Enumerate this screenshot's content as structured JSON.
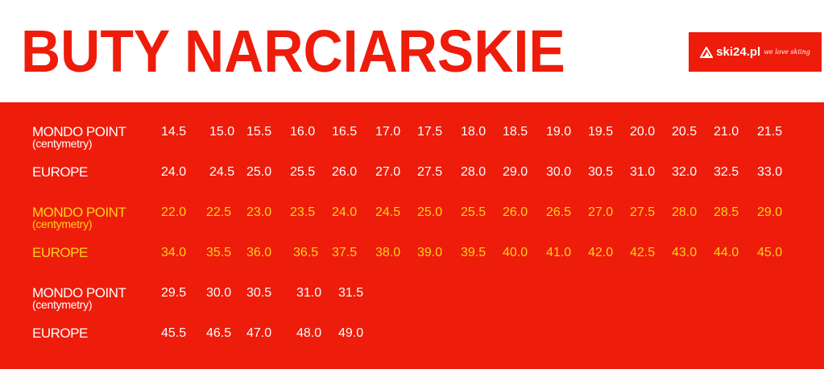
{
  "title": "BUTY NARCIARSKIE",
  "logo": {
    "text": "ski24.pl",
    "tagline": "we love skiing",
    "icon": "mountain-icon"
  },
  "colors": {
    "brand_red": "#ee1c0a",
    "primary_text": "#ffffff",
    "highlight_text": "#ffd21a"
  },
  "groups": [
    {
      "color": "white",
      "mondo_label": "MONDO POINT",
      "mondo_unit": "(centymetry)",
      "europe_label": "EUROPE",
      "mondo": [
        "14.5",
        "15.0",
        "15.5",
        "16.0",
        "16.5",
        "17.0",
        "17.5",
        "18.0",
        "18.5",
        "19.0",
        "19.5",
        "20.0",
        "20.5",
        "21.0",
        "21.5"
      ],
      "europe": [
        "24.0",
        "24.5",
        "25.0",
        "25.5",
        "26.0",
        "27.0",
        "27.5",
        "28.0",
        "29.0",
        "30.0",
        "30.5",
        "31.0",
        "32.0",
        "32.5",
        "33.0"
      ]
    },
    {
      "color": "yellow",
      "mondo_label": "MONDO POINT",
      "mondo_unit": "(centymetry)",
      "europe_label": "EUROPE",
      "mondo": [
        "22.0",
        "22.5",
        "23.0",
        "23.5",
        "24.0",
        "24.5",
        "25.0",
        "25.5",
        "26.0",
        "26.5",
        "27.0",
        "27.5",
        "28.0",
        "28.5",
        "29.0"
      ],
      "europe": [
        "34.0",
        "35.5",
        "36.0",
        "36.5",
        "37.5",
        "38.0",
        "39.0",
        "39.5",
        "40.0",
        "41.0",
        "42.0",
        "42.5",
        "43.0",
        "44.0",
        "45.0"
      ]
    },
    {
      "color": "white",
      "mondo_label": "MONDO POINT",
      "mondo_unit": "(centymetry)",
      "europe_label": "EUROPE",
      "mondo": [
        "29.5",
        "30.0",
        "30.5",
        "31.0",
        "31.5"
      ],
      "europe": [
        "45.5",
        "46.5",
        "47.0",
        "48.0",
        "49.0"
      ]
    }
  ]
}
